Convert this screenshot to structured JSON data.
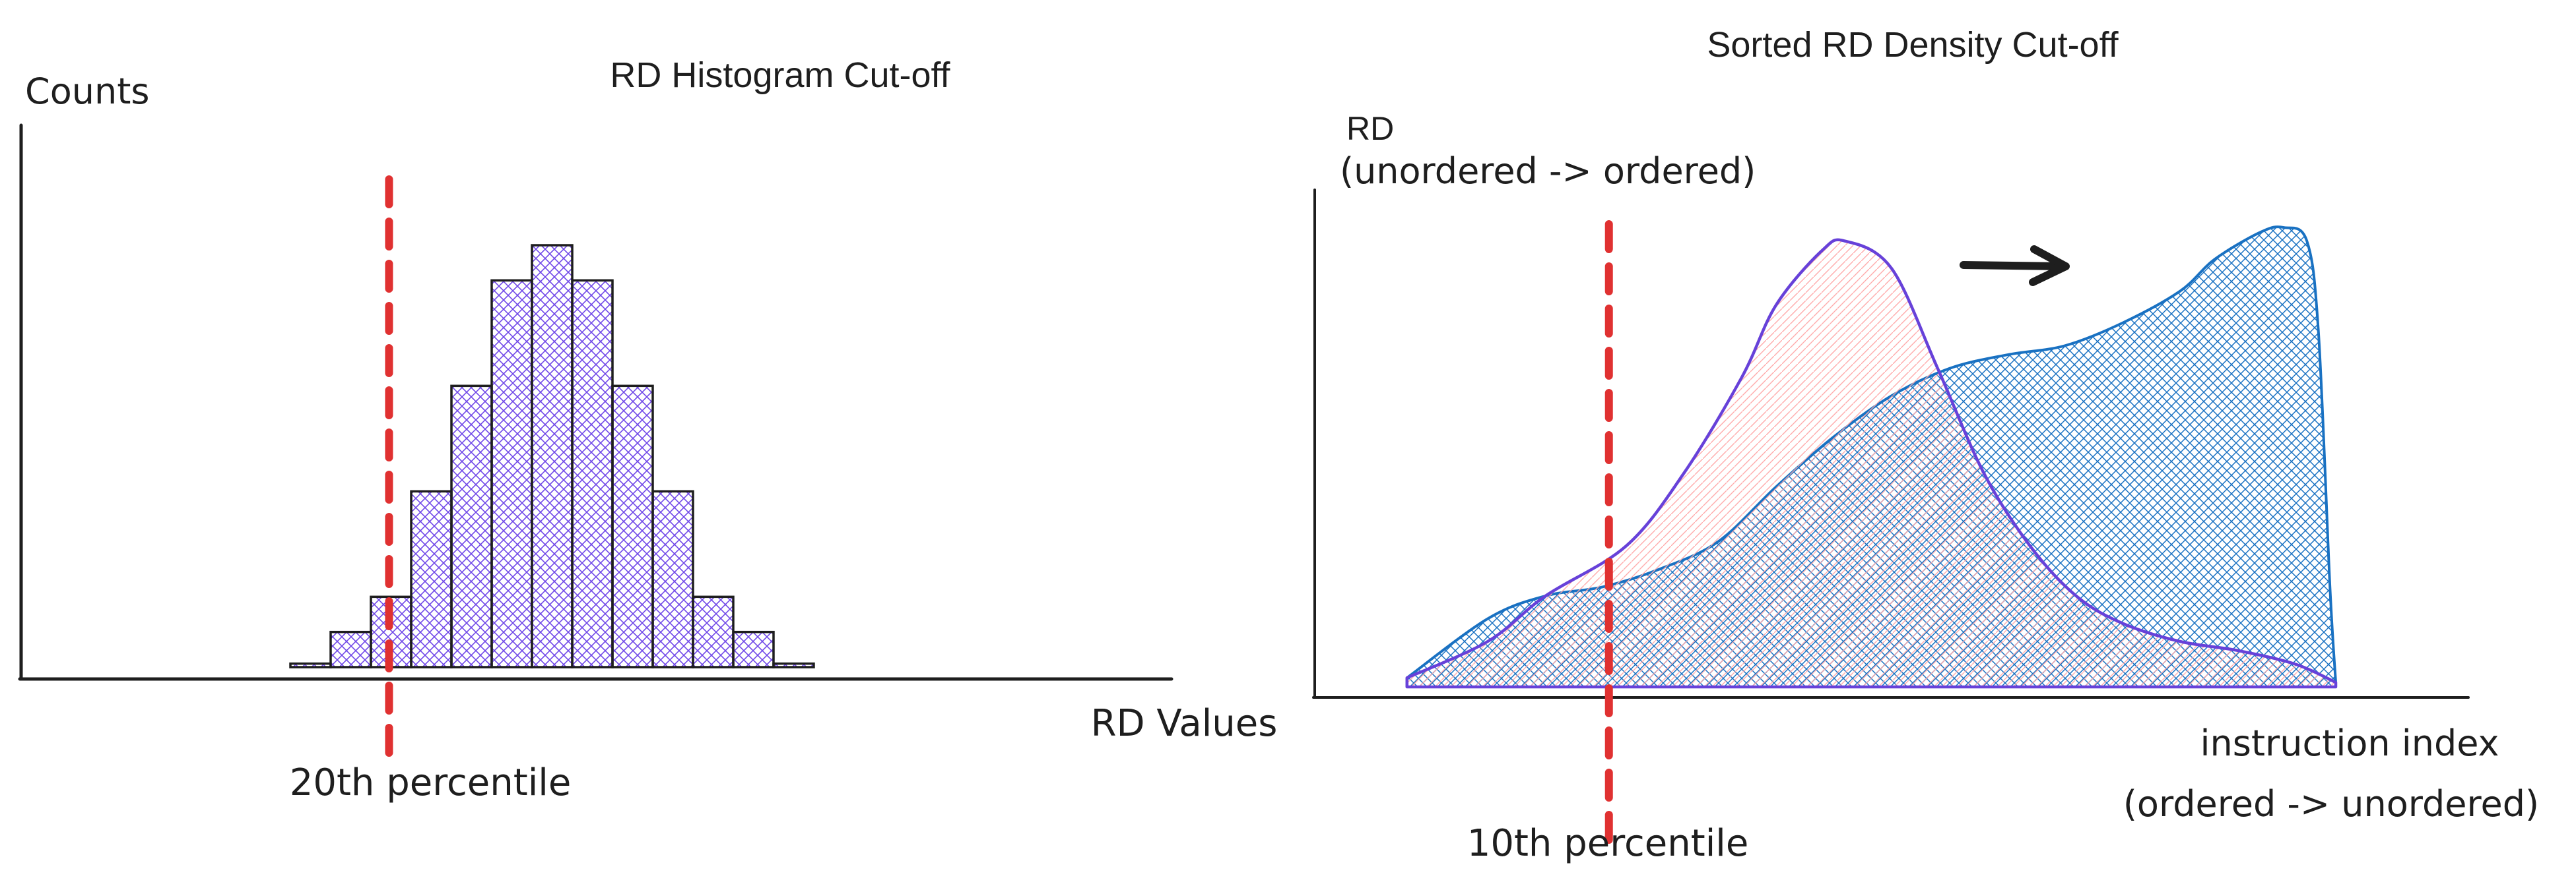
{
  "colors": {
    "ink": "#1e1e1e",
    "bar_fill": "#7048e8",
    "cutoff": "#e03131",
    "curve_unordered": "#6741d9",
    "curve_unordered_fill": "#ffc9c9",
    "curve_ordered": "#1971c2"
  },
  "chart_data": [
    {
      "type": "bar",
      "title": "RD Histogram Cut-off",
      "xlabel": "RD Values",
      "ylabel": "Counts",
      "values": [
        0.1,
        1,
        2,
        5,
        8,
        11,
        12,
        11,
        8,
        5,
        2,
        1,
        0.1
      ],
      "ylim": [
        0,
        13.5
      ],
      "cutoff": {
        "label": "20th percentile",
        "bin": 2.45
      },
      "grid": false,
      "legend": "none"
    },
    {
      "type": "area",
      "title": "Sorted RD Density Cut-off",
      "xlabel": "instruction index",
      "xlabel_sub": "(ordered -> unordered)",
      "ylabel": "RD",
      "ylabel_sub": "(unordered -> ordered)",
      "xlim": [
        0,
        100
      ],
      "ylim": [
        0,
        100
      ],
      "series": [
        {
          "color": "curve_unordered",
          "x": [
            8,
            15,
            20,
            27,
            32,
            37,
            40,
            44,
            46,
            50,
            54,
            58,
            62,
            66,
            70,
            75,
            80,
            85,
            88.5
          ],
          "y": [
            2,
            10,
            20,
            31,
            47,
            68,
            84,
            96,
            98,
            92,
            70,
            47,
            31,
            20,
            14,
            10,
            8,
            5,
            1
          ]
        },
        {
          "color": "curve_ordered",
          "x": [
            8,
            15,
            20,
            25,
            30,
            35,
            40,
            45,
            50,
            55,
            60,
            65,
            70,
            75,
            78,
            82,
            84,
            86,
            87,
            88,
            88.5
          ],
          "y": [
            2,
            15,
            20,
            22,
            26,
            32,
            44,
            55,
            64,
            70,
            73,
            75,
            80,
            87,
            94,
            100,
            101,
            98,
            78,
            22,
            1
          ]
        }
      ],
      "cutoff": {
        "label": "10th percentile",
        "x": 25.5
      },
      "arrow": "right",
      "grid": false,
      "legend": "none"
    }
  ]
}
